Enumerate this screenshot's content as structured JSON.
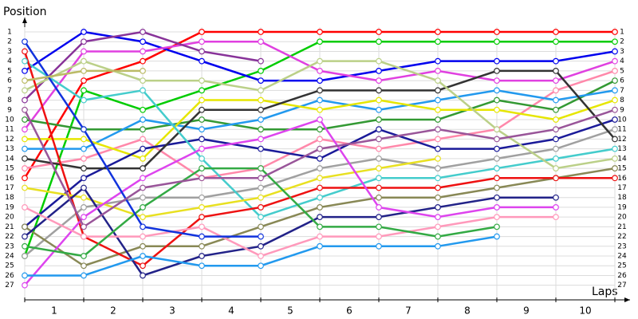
{
  "chart_data": {
    "type": "line",
    "y_label": "Position",
    "x_label": "Laps",
    "x": [
      0,
      1,
      2,
      3,
      4,
      5,
      6,
      7,
      8,
      9,
      10
    ],
    "xlim": [
      0,
      10.3
    ],
    "ylim": [
      28.5,
      0
    ],
    "xticks": [
      {
        "value": 0.5,
        "label": "1"
      },
      {
        "value": 1.5,
        "label": "2"
      },
      {
        "value": 2.5,
        "label": "3"
      },
      {
        "value": 3.5,
        "label": "4"
      },
      {
        "value": 4.5,
        "label": "5"
      },
      {
        "value": 5.5,
        "label": "6"
      },
      {
        "value": 6.5,
        "label": "7"
      },
      {
        "value": 7.5,
        "label": "8"
      },
      {
        "value": 8.5,
        "label": "9"
      },
      {
        "value": 9.5,
        "label": "10"
      }
    ],
    "yticks": [
      1,
      2,
      3,
      4,
      5,
      6,
      7,
      8,
      9,
      10,
      11,
      12,
      13,
      14,
      15,
      16,
      17,
      18,
      19,
      20,
      21,
      22,
      23,
      24,
      25,
      26,
      27
    ],
    "grid": true,
    "series": [
      {
        "color": "#ff0000",
        "values": [
          16,
          6,
          4,
          1,
          1,
          1,
          1,
          1,
          1,
          1,
          1
        ]
      },
      {
        "color": "#00cc00",
        "values": [
          24,
          7,
          9,
          7,
          5,
          2,
          2,
          2,
          2,
          2,
          2
        ]
      },
      {
        "color": "#0000ee",
        "values": [
          5,
          1,
          2,
          4,
          6,
          6,
          5,
          4,
          4,
          4,
          3
        ]
      },
      {
        "color": "#e040e0",
        "values": [
          11,
          3,
          3,
          2,
          2,
          5,
          6,
          5,
          6,
          6,
          4
        ]
      },
      {
        "color": "#ff88aa",
        "values": [
          15,
          14,
          12,
          16,
          15,
          12,
          13,
          12,
          11,
          7,
          5
        ]
      },
      {
        "color": "#339933",
        "values": [
          10,
          11,
          11,
          10,
          11,
          11,
          10,
          10,
          8,
          9,
          6
        ]
      },
      {
        "color": "#2299ee",
        "values": [
          13,
          13,
          10,
          11,
          10,
          8,
          9,
          8,
          7,
          8,
          7
        ]
      },
      {
        "color": "#e6e600",
        "values": [
          12,
          12,
          14,
          8,
          8,
          9,
          8,
          9,
          9,
          10,
          8
        ]
      },
      {
        "color": "#883399",
        "values": [
          8,
          2,
          1,
          3,
          4,
          null,
          null,
          null,
          null,
          null,
          null
        ]
      },
      {
        "color": "#1a1a99",
        "values": [
          21,
          16,
          13,
          12,
          13,
          14,
          11,
          13,
          13,
          12,
          10
        ]
      },
      {
        "color": "#a0a0a0",
        "values": [
          24,
          19,
          18,
          18,
          17,
          15,
          14,
          15,
          14,
          13,
          11
        ]
      },
      {
        "color": "#333333",
        "values": [
          14,
          15,
          15,
          9,
          9,
          7,
          7,
          7,
          5,
          5,
          12
        ]
      },
      {
        "color": "#44cccc",
        "values": [
          4,
          8,
          7,
          14,
          20,
          18,
          16,
          16,
          15,
          14,
          13
        ]
      },
      {
        "color": "#bbd088",
        "values": [
          7,
          4,
          6,
          6,
          7,
          4,
          4,
          6,
          11,
          15,
          14
        ]
      },
      {
        "color": "#888855",
        "values": [
          21,
          25,
          23,
          23,
          21,
          19,
          18,
          18,
          17,
          16,
          15
        ]
      },
      {
        "color": "#ee1111",
        "values": [
          3,
          22,
          25,
          20,
          19,
          17,
          17,
          17,
          16,
          16,
          16
        ]
      },
      {
        "color": "#e8e020",
        "values": [
          17,
          18,
          20,
          19,
          18,
          16,
          15,
          14,
          null,
          null,
          null
        ]
      },
      {
        "color": "#222288",
        "values": [
          22,
          17,
          26,
          24,
          23,
          20,
          20,
          19,
          18,
          18,
          null
        ]
      },
      {
        "color": "#dd44ee",
        "values": [
          27,
          20,
          16,
          13,
          12,
          10,
          19,
          20,
          19,
          19,
          null
        ]
      },
      {
        "color": "#ff99bb",
        "values": [
          19,
          22,
          22,
          21,
          24,
          22,
          22,
          21,
          20,
          20,
          null
        ]
      },
      {
        "color": "#33aa44",
        "values": [
          23,
          24,
          19,
          15,
          15,
          21,
          21,
          22,
          21,
          null,
          null
        ]
      },
      {
        "color": "#2299ee",
        "values": [
          26,
          26,
          24,
          25,
          25,
          23,
          23,
          23,
          22,
          null,
          null
        ]
      },
      {
        "color": "#1133dd",
        "values": [
          2,
          11,
          21,
          22,
          22,
          null,
          null,
          null,
          null,
          null,
          null
        ]
      },
      {
        "color": "#995599",
        "values": [
          9,
          21,
          17,
          16,
          16,
          13,
          12,
          11,
          12,
          11,
          9
        ]
      },
      {
        "color": "#bbbb66",
        "values": [
          6,
          5,
          5,
          null,
          null,
          null,
          null,
          null,
          null,
          null,
          null
        ]
      }
    ]
  }
}
